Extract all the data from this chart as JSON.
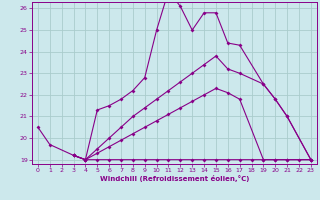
{
  "background_color": "#cce8ec",
  "grid_color": "#aacccc",
  "line_color": "#880088",
  "xlim": [
    -0.5,
    23.5
  ],
  "ylim": [
    18.8,
    26.3
  ],
  "yticks": [
    19,
    20,
    21,
    22,
    23,
    24,
    25,
    26
  ],
  "xticks": [
    0,
    1,
    2,
    3,
    4,
    5,
    6,
    7,
    8,
    9,
    10,
    11,
    12,
    13,
    14,
    15,
    16,
    17,
    18,
    19,
    20,
    21,
    22,
    23
  ],
  "xlabel": "Windchill (Refroidissement éolien,°C)",
  "series": [
    {
      "x": [
        0,
        1,
        3,
        4,
        5,
        6,
        7,
        8,
        9,
        10,
        11,
        12,
        13,
        14,
        15,
        16,
        17,
        19,
        20,
        21,
        23
      ],
      "y": [
        20.5,
        19.7,
        19.2,
        19.0,
        21.3,
        21.5,
        21.8,
        22.2,
        22.8,
        25.0,
        26.8,
        26.1,
        25.0,
        25.8,
        25.8,
        24.4,
        24.3,
        22.5,
        21.8,
        21.0,
        19.0
      ]
    },
    {
      "x": [
        3,
        4,
        5,
        6,
        7,
        8,
        9,
        10,
        11,
        12,
        13,
        14,
        15,
        16,
        17,
        19,
        20,
        21,
        23
      ],
      "y": [
        19.2,
        19.0,
        19.5,
        20.0,
        20.5,
        21.0,
        21.4,
        21.8,
        22.2,
        22.6,
        23.0,
        23.4,
        23.8,
        23.2,
        23.0,
        22.5,
        21.8,
        21.0,
        19.0
      ]
    },
    {
      "x": [
        3,
        4,
        5,
        6,
        7,
        8,
        9,
        10,
        11,
        12,
        13,
        14,
        15,
        16,
        17,
        19,
        20,
        21,
        23
      ],
      "y": [
        19.2,
        19.0,
        19.3,
        19.6,
        19.9,
        20.2,
        20.5,
        20.8,
        21.1,
        21.4,
        21.7,
        22.0,
        22.3,
        22.1,
        21.8,
        19.0,
        19.0,
        19.0,
        19.0
      ]
    },
    {
      "x": [
        3,
        4,
        5,
        6,
        7,
        8,
        9,
        10,
        11,
        12,
        13,
        14,
        15,
        16,
        17,
        18,
        19,
        20,
        21,
        22,
        23
      ],
      "y": [
        19.2,
        19.0,
        19.0,
        19.0,
        19.0,
        19.0,
        19.0,
        19.0,
        19.0,
        19.0,
        19.0,
        19.0,
        19.0,
        19.0,
        19.0,
        19.0,
        19.0,
        19.0,
        19.0,
        19.0,
        19.0
      ]
    }
  ]
}
